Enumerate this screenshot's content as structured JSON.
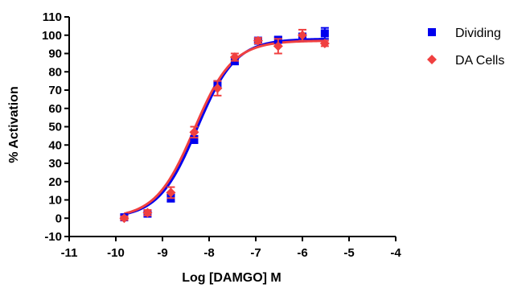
{
  "chart_data": {
    "type": "scatter",
    "xlabel": "Log [DAMGO] M",
    "ylabel": "% Activation",
    "xlim": [
      -11,
      -4
    ],
    "ylim": [
      -10,
      110
    ],
    "x_ticks": [
      -11,
      -10,
      -9,
      -8,
      -7,
      -6,
      -5,
      -4
    ],
    "y_ticks": [
      -10,
      0,
      10,
      20,
      30,
      40,
      50,
      60,
      70,
      80,
      90,
      100,
      110
    ],
    "legend_position": "top-right",
    "grid": false,
    "series": [
      {
        "name": "Dividing",
        "color": "#0000ee",
        "marker": "square",
        "x": [
          -9.82,
          -9.32,
          -8.82,
          -8.32,
          -7.82,
          -7.45,
          -6.95,
          -6.52,
          -6.0,
          -5.52
        ],
        "y": [
          0.5,
          2.5,
          11,
          43,
          73,
          86,
          97,
          97.5,
          99,
          101
        ],
        "err": [
          1,
          1,
          2,
          2,
          2,
          2,
          1,
          1.5,
          2,
          3
        ],
        "fit": {
          "bottom": 0,
          "top": 98,
          "log_ec50": -8.26,
          "hill": 1.05
        }
      },
      {
        "name": "DA Cells",
        "color": "#f04040",
        "marker": "diamond",
        "x": [
          -9.82,
          -9.32,
          -8.82,
          -8.32,
          -7.82,
          -7.45,
          -6.95,
          -6.52,
          -6.0,
          -5.52
        ],
        "y": [
          0,
          3,
          14,
          47,
          71,
          88,
          97,
          94,
          100,
          95.5
        ],
        "err": [
          1,
          1.5,
          3,
          3,
          4,
          2,
          1.5,
          4,
          3,
          1.5
        ],
        "fit": {
          "bottom": 0,
          "top": 97,
          "log_ec50": -8.32,
          "hill": 1.05
        }
      }
    ]
  }
}
